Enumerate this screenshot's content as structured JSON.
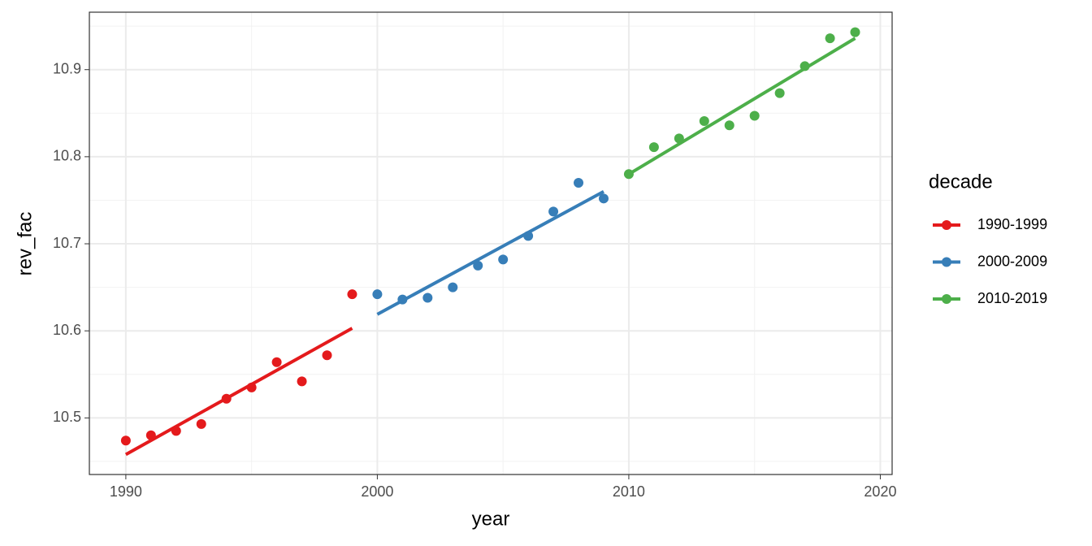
{
  "chart_data": {
    "type": "scatter",
    "x_label": "year",
    "y_label": "rev_fac",
    "xlim": [
      1988.55,
      2020.47
    ],
    "ylim": [
      10.435,
      10.966
    ],
    "xticks": [
      1990,
      2000,
      2010,
      2020
    ],
    "yticks": [
      10.5,
      10.6,
      10.7,
      10.8,
      10.9
    ],
    "x_minor_grid": [
      1995,
      2005,
      2015
    ],
    "y_minor_grid": [
      10.45,
      10.55,
      10.65,
      10.75,
      10.85,
      10.95
    ],
    "grid": true,
    "legend_title": "decade",
    "legend_position": "right",
    "series": [
      {
        "name": "1990-1999",
        "color": "#e41a1c",
        "x": [
          1990,
          1991,
          1992,
          1993,
          1994,
          1995,
          1996,
          1997,
          1998,
          1999
        ],
        "values": [
          10.474,
          10.48,
          10.485,
          10.493,
          10.522,
          10.535,
          10.564,
          10.542,
          10.572,
          10.642
        ],
        "fit": {
          "x": [
            1990,
            1999
          ],
          "y": [
            10.458,
            10.603
          ]
        }
      },
      {
        "name": "2000-2009",
        "color": "#377eb8",
        "x": [
          2000,
          2001,
          2002,
          2003,
          2004,
          2005,
          2006,
          2007,
          2008,
          2009
        ],
        "values": [
          10.642,
          10.636,
          10.638,
          10.65,
          10.675,
          10.682,
          10.709,
          10.737,
          10.77,
          10.752
        ],
        "fit": {
          "x": [
            2000,
            2009
          ],
          "y": [
            10.619,
            10.76
          ]
        }
      },
      {
        "name": "2010-2019",
        "color": "#4daf4a",
        "x": [
          2010,
          2011,
          2012,
          2013,
          2014,
          2015,
          2016,
          2017,
          2018,
          2019
        ],
        "values": [
          10.78,
          10.811,
          10.821,
          10.841,
          10.836,
          10.847,
          10.873,
          10.904,
          10.936,
          10.943
        ],
        "fit": {
          "x": [
            2010,
            2019
          ],
          "y": [
            10.78,
            10.936
          ]
        }
      }
    ]
  }
}
